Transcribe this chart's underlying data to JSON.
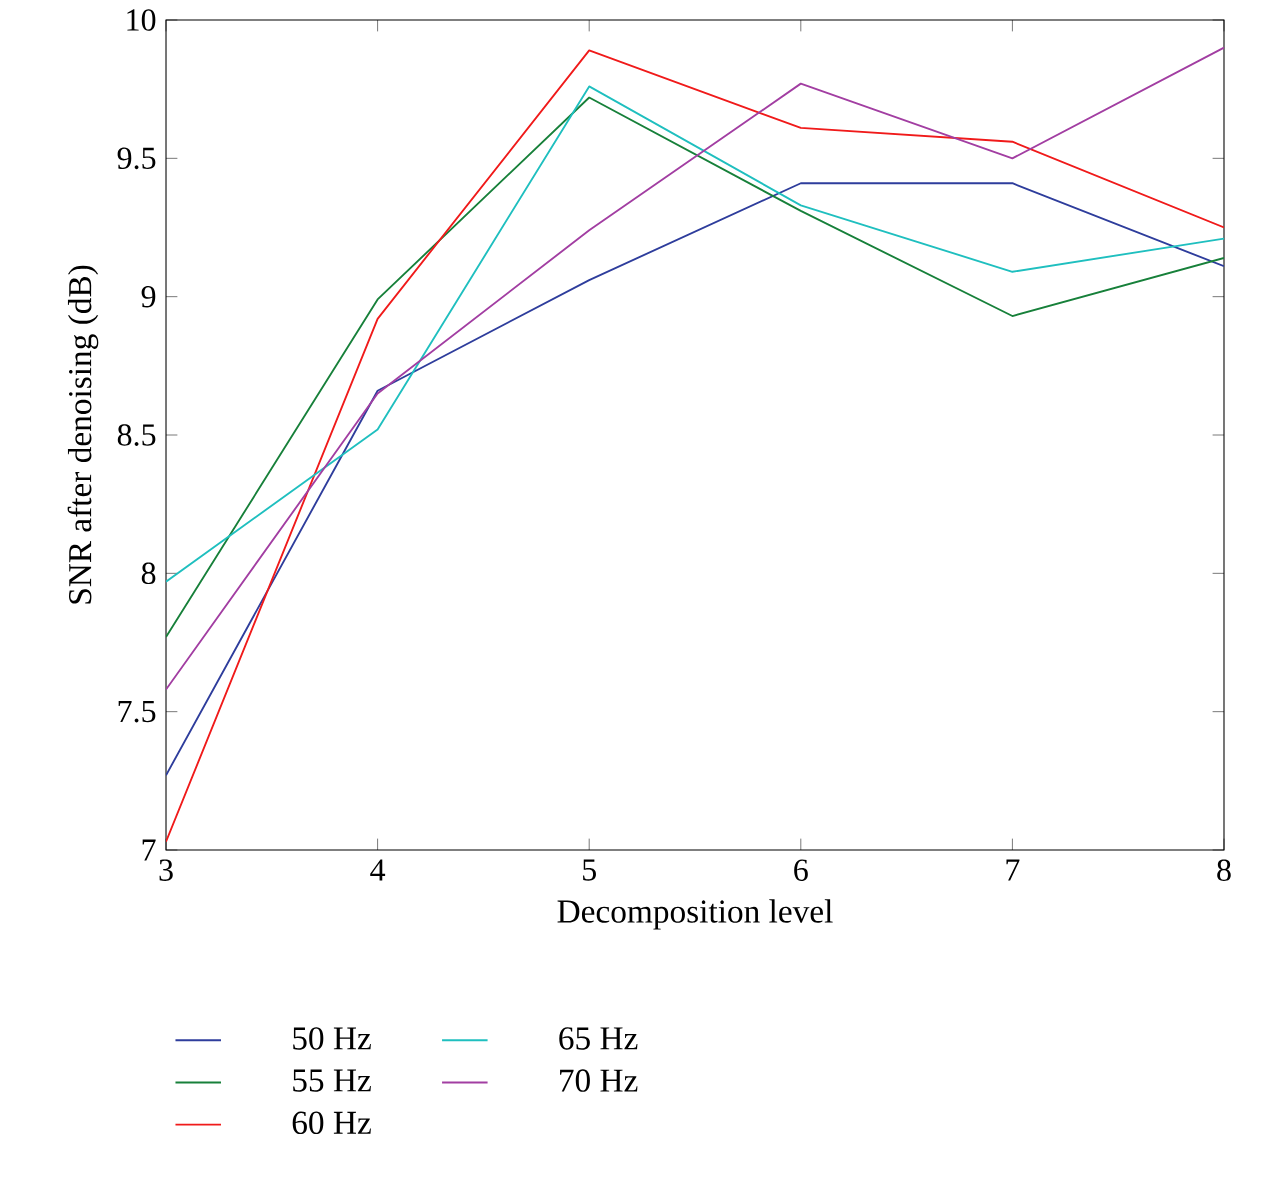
{
  "chart_data": {
    "type": "line",
    "xlabel": "Decomposition level",
    "ylabel": "SNR after denoising (dB)",
    "x": [
      3,
      4,
      5,
      6,
      7,
      8
    ],
    "series": [
      {
        "name": "50 Hz",
        "color": "#2e3d9c",
        "values": [
          7.27,
          8.66,
          9.06,
          9.41,
          9.41,
          9.11
        ]
      },
      {
        "name": "55 Hz",
        "color": "#17803a",
        "values": [
          7.77,
          8.99,
          9.72,
          9.31,
          8.93,
          9.14
        ]
      },
      {
        "name": "60 Hz",
        "color": "#f01a1a",
        "values": [
          7.03,
          8.92,
          9.89,
          9.61,
          9.56,
          9.25
        ]
      },
      {
        "name": "65 Hz",
        "color": "#1fbfbf",
        "values": [
          7.97,
          8.52,
          9.76,
          9.33,
          9.09,
          9.21
        ]
      },
      {
        "name": "70 Hz",
        "color": "#a23ea2",
        "values": [
          7.58,
          8.65,
          9.24,
          9.77,
          9.5,
          9.9
        ]
      }
    ],
    "xlim": [
      3,
      8
    ],
    "ylim": [
      7,
      10
    ],
    "xticks": [
      3,
      4,
      5,
      6,
      7,
      8
    ],
    "yticks": [
      7,
      7.5,
      8,
      8.5,
      9,
      9.5,
      10
    ],
    "legend": "bottom",
    "marker": "none",
    "line_style": "solid",
    "grid": false
  }
}
